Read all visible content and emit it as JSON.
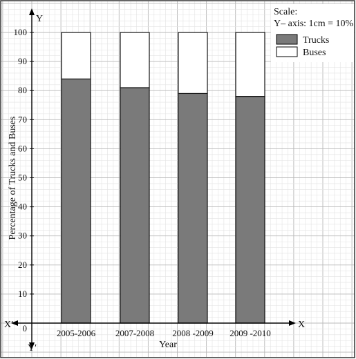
{
  "chart_data": {
    "type": "bar",
    "stacked": true,
    "percent": true,
    "categories": [
      "2005-2006",
      "2007-2008",
      "2008 -2009",
      "2009 -2010"
    ],
    "series": [
      {
        "name": "Trucks",
        "values": [
          84,
          81,
          79,
          78
        ],
        "color": "#7a7a7a"
      },
      {
        "name": "Buses",
        "values": [
          16,
          19,
          21,
          22
        ],
        "color": "#ffffff"
      }
    ],
    "xlabel": "Year",
    "ylabel": "Percentage of Trucks and Buses",
    "ylim": [
      0,
      100
    ],
    "yticks": [
      0,
      10,
      20,
      30,
      40,
      50,
      60,
      70,
      80,
      90,
      100
    ],
    "grid": true,
    "legend_position": "top-right"
  },
  "axes": {
    "x_pos_label": "X",
    "x_neg_label": "X′",
    "y_pos_label": "Y",
    "y_neg_label": "Y′"
  },
  "scale_note": {
    "title": "Scale:",
    "text": "Y– axis: 1cm = 10%"
  },
  "colors": {
    "grid_minor": "#e3e3e3",
    "grid_major": "#b9b9b9",
    "frame": "#333333"
  }
}
